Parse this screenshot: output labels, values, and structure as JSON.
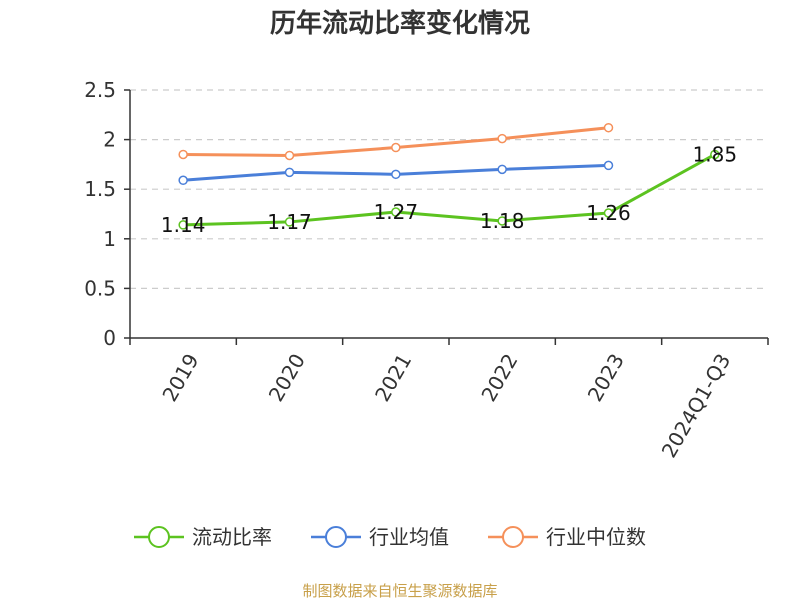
{
  "chart_data": {
    "type": "line",
    "title": "历年流动比率变化情况",
    "categories": [
      "2019",
      "2020",
      "2021",
      "2022",
      "2023",
      "2024Q1-Q3"
    ],
    "y_ticks": [
      "0",
      "0.5",
      "1",
      "1.5",
      "2",
      "2.5"
    ],
    "ylim": [
      0,
      2.5
    ],
    "grid": true,
    "legend_position": "bottom",
    "series": [
      {
        "name": "流动比率",
        "color": "#5cc320",
        "values": [
          1.14,
          1.17,
          1.27,
          1.18,
          1.26,
          1.85
        ],
        "labels": [
          "1.14",
          "1.17",
          "1.27",
          "1.18",
          "1.26",
          "1.85"
        ]
      },
      {
        "name": "行业均值",
        "color": "#4a7fd9",
        "values": [
          1.59,
          1.67,
          1.65,
          1.7,
          1.74,
          null
        ]
      },
      {
        "name": "行业中位数",
        "color": "#f5905a",
        "values": [
          1.85,
          1.84,
          1.92,
          2.01,
          2.12,
          null
        ]
      }
    ]
  },
  "source": "制图数据来自恒生聚源数据库"
}
